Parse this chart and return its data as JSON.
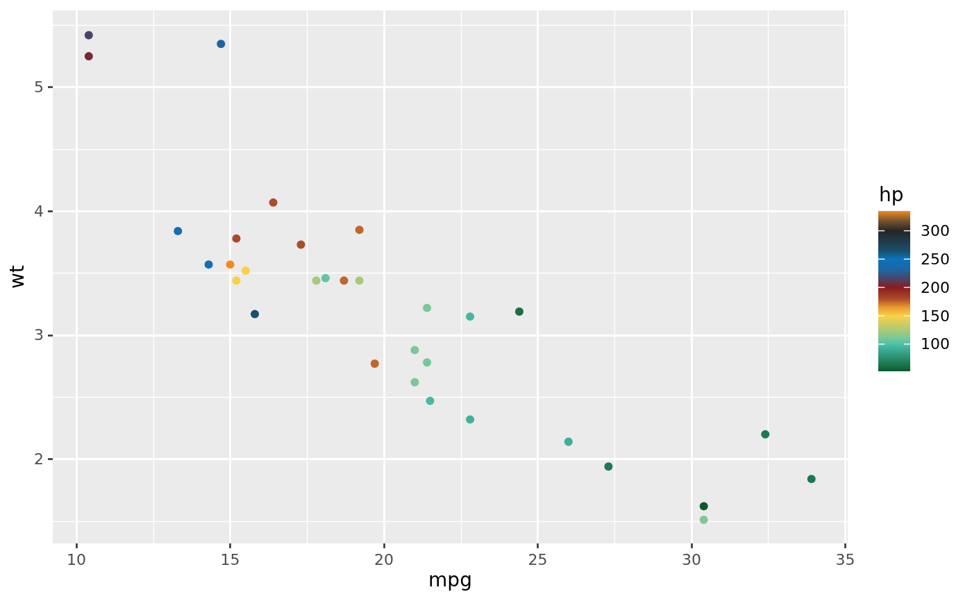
{
  "chart_data": {
    "type": "scatter",
    "xlabel": "mpg",
    "ylabel": "wt",
    "clabel": "hp",
    "x": [
      21.0,
      21.0,
      22.8,
      21.4,
      18.7,
      18.1,
      14.3,
      24.4,
      22.8,
      19.2,
      17.8,
      16.4,
      17.3,
      15.2,
      10.4,
      10.4,
      14.7,
      32.4,
      30.4,
      33.9,
      21.5,
      15.5,
      15.2,
      13.3,
      19.2,
      27.3,
      26.0,
      30.4,
      15.8,
      19.7,
      15.0,
      21.4
    ],
    "values": [
      2.62,
      2.88,
      2.32,
      3.22,
      3.44,
      3.46,
      3.57,
      3.19,
      3.15,
      3.44,
      3.44,
      4.07,
      3.73,
      3.78,
      5.25,
      5.42,
      5.35,
      2.2,
      1.62,
      1.84,
      2.47,
      3.52,
      3.44,
      3.84,
      3.85,
      1.94,
      2.14,
      1.51,
      3.17,
      2.77,
      3.57,
      2.78
    ],
    "cvalues": [
      110,
      110,
      93,
      110,
      175,
      105,
      245,
      62,
      95,
      123,
      123,
      180,
      180,
      180,
      205,
      215,
      230,
      66,
      52,
      65,
      97,
      150,
      150,
      245,
      175,
      66,
      91,
      113,
      264,
      175,
      335,
      109
    ],
    "clim": [
      52,
      335
    ],
    "cticks": [
      100,
      150,
      200,
      250,
      300
    ],
    "xlim": [
      9.23,
      35.08
    ],
    "ylim": [
      1.32,
      5.62
    ],
    "xticks": [
      10,
      15,
      20,
      25,
      30,
      35
    ],
    "yticks": [
      2,
      3,
      4,
      5
    ],
    "grid": true,
    "marker": "circle"
  }
}
